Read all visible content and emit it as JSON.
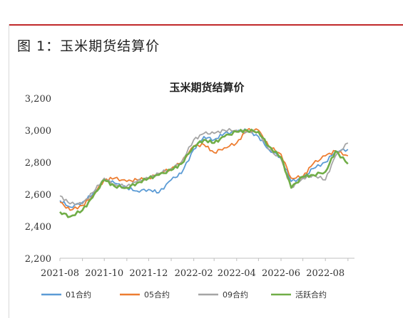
{
  "figure_title": "图 1：玉米期货结算价",
  "colors": {
    "s01": "#5b9bd5",
    "s05": "#ed7d31",
    "s09": "#a5a5a5",
    "active": "#70ad47",
    "header_rule": "#c0282a"
  },
  "chart_data": {
    "type": "line",
    "title": "玉米期货结算价",
    "xlabel": "",
    "ylabel": "",
    "ylim": [
      2200,
      3200
    ],
    "yticks": [
      "2,200",
      "2,400",
      "2,600",
      "2,800",
      "3,000",
      "3,200"
    ],
    "xticks": [
      "2021-08",
      "2021-10",
      "2021-12",
      "2022-02",
      "2022-04",
      "2022-06",
      "2022-08"
    ],
    "grid": false,
    "legend_position": "bottom",
    "x": [
      "2021-08-01",
      "2021-08-15",
      "2021-09-01",
      "2021-09-15",
      "2021-10-01",
      "2021-10-15",
      "2021-11-01",
      "2021-11-15",
      "2021-12-01",
      "2021-12-15",
      "2022-01-01",
      "2022-01-15",
      "2022-02-01",
      "2022-02-15",
      "2022-03-01",
      "2022-03-15",
      "2022-04-01",
      "2022-04-15",
      "2022-05-01",
      "2022-05-15",
      "2022-06-01",
      "2022-06-15",
      "2022-07-01",
      "2022-07-15",
      "2022-08-01",
      "2022-08-15",
      "2022-09-01"
    ],
    "series": [
      {
        "name": "01合约",
        "color_key": "s01",
        "values": [
          2560,
          2520,
          2550,
          2600,
          2690,
          2670,
          2640,
          2620,
          2630,
          2610,
          2690,
          2730,
          2880,
          2960,
          2940,
          2980,
          2990,
          3000,
          2960,
          2880,
          2830,
          2680,
          2700,
          2760,
          2800,
          2870,
          2880
        ]
      },
      {
        "name": "05合约",
        "color_key": "s05",
        "values": [
          2550,
          2500,
          2530,
          2590,
          2690,
          2700,
          2680,
          2690,
          2700,
          2730,
          2760,
          2800,
          2900,
          2910,
          2860,
          2890,
          2920,
          3000,
          3000,
          2900,
          2850,
          2700,
          2710,
          2790,
          2840,
          2870,
          2840
        ]
      },
      {
        "name": "09合约",
        "color_key": "s09",
        "values": [
          2590,
          2540,
          2540,
          2610,
          2700,
          2660,
          2650,
          2680,
          2700,
          2730,
          2760,
          2800,
          2940,
          2980,
          2980,
          3000,
          3000,
          2990,
          2990,
          2880,
          2820,
          2640,
          2700,
          2720,
          2690,
          2840,
          2920
        ]
      },
      {
        "name": "活跃合约",
        "color_key": "active",
        "values": [
          2490,
          2460,
          2500,
          2580,
          2690,
          2650,
          2640,
          2670,
          2700,
          2720,
          2750,
          2790,
          2900,
          2940,
          2920,
          2960,
          2990,
          3000,
          2990,
          2900,
          2830,
          2640,
          2710,
          2720,
          2740,
          2870,
          2790
        ]
      }
    ]
  }
}
